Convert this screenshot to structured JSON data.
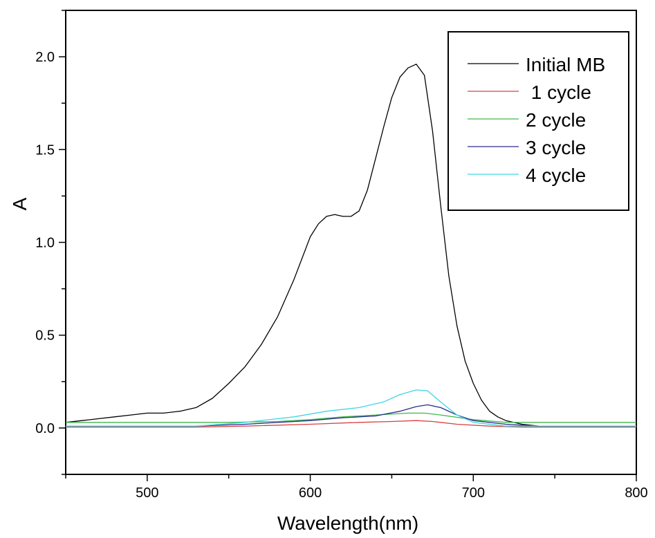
{
  "chart_data": {
    "type": "line",
    "xlabel": "Wavelength(nm)",
    "ylabel": "A",
    "xlim": [
      450,
      800
    ],
    "ylim": [
      -0.25,
      2.25
    ],
    "x_ticks": [
      500,
      600,
      700,
      800
    ],
    "y_ticks": [
      0.0,
      0.5,
      1.0,
      1.5,
      2.0
    ],
    "x_tick_labels": [
      "500",
      "600",
      "700",
      "800"
    ],
    "y_tick_labels": [
      "0.0",
      "0.5",
      "1.0",
      "1.5",
      "2.0"
    ],
    "grid": false,
    "legend_position": "top-right",
    "series": [
      {
        "name": "Initial MB",
        "color": "#000000",
        "x": [
          450,
          460,
          470,
          480,
          490,
          500,
          510,
          520,
          530,
          540,
          550,
          560,
          570,
          580,
          590,
          600,
          605,
          610,
          615,
          620,
          625,
          630,
          635,
          640,
          645,
          650,
          655,
          660,
          665,
          670,
          675,
          680,
          685,
          690,
          695,
          700,
          705,
          710,
          715,
          720,
          730,
          740,
          750,
          760,
          770,
          780,
          790,
          800
        ],
        "y": [
          0.03,
          0.04,
          0.05,
          0.06,
          0.07,
          0.08,
          0.08,
          0.09,
          0.11,
          0.16,
          0.24,
          0.33,
          0.45,
          0.6,
          0.8,
          1.03,
          1.1,
          1.14,
          1.15,
          1.14,
          1.14,
          1.17,
          1.28,
          1.45,
          1.62,
          1.78,
          1.89,
          1.94,
          1.96,
          1.9,
          1.6,
          1.2,
          0.82,
          0.55,
          0.36,
          0.24,
          0.15,
          0.09,
          0.06,
          0.04,
          0.02,
          0.01,
          0.01,
          0.01,
          0.01,
          0.01,
          0.01,
          0.01
        ]
      },
      {
        "name": " 1 cycle",
        "color": "#d94040",
        "x": [
          450,
          500,
          530,
          560,
          600,
          630,
          650,
          665,
          675,
          690,
          710,
          730,
          760,
          800
        ],
        "y": [
          0.005,
          0.005,
          0.005,
          0.01,
          0.02,
          0.03,
          0.035,
          0.04,
          0.035,
          0.02,
          0.01,
          0.005,
          0.005,
          0.005
        ]
      },
      {
        "name": "2 cycle",
        "color": "#3cb94a",
        "x": [
          450,
          500,
          550,
          580,
          600,
          620,
          640,
          660,
          670,
          680,
          700,
          720,
          750,
          800
        ],
        "y": [
          0.03,
          0.03,
          0.03,
          0.035,
          0.045,
          0.06,
          0.07,
          0.08,
          0.08,
          0.07,
          0.045,
          0.03,
          0.03,
          0.03
        ]
      },
      {
        "name": "3 cycle",
        "color": "#2a2a8c",
        "x": [
          450,
          500,
          530,
          560,
          600,
          620,
          640,
          655,
          665,
          672,
          680,
          690,
          700,
          720,
          740,
          760,
          800
        ],
        "y": [
          0.01,
          0.01,
          0.01,
          0.02,
          0.04,
          0.055,
          0.065,
          0.09,
          0.115,
          0.125,
          0.11,
          0.07,
          0.04,
          0.02,
          0.01,
          0.01,
          0.01
        ]
      },
      {
        "name": "4 cycle",
        "color": "#3fd6e3",
        "x": [
          450,
          500,
          530,
          560,
          590,
          610,
          630,
          645,
          655,
          665,
          672,
          680,
          690,
          700,
          720,
          740,
          800
        ],
        "y": [
          0.01,
          0.01,
          0.01,
          0.03,
          0.06,
          0.09,
          0.11,
          0.14,
          0.18,
          0.205,
          0.2,
          0.14,
          0.07,
          0.03,
          0.01,
          0.01,
          0.01
        ]
      }
    ]
  }
}
